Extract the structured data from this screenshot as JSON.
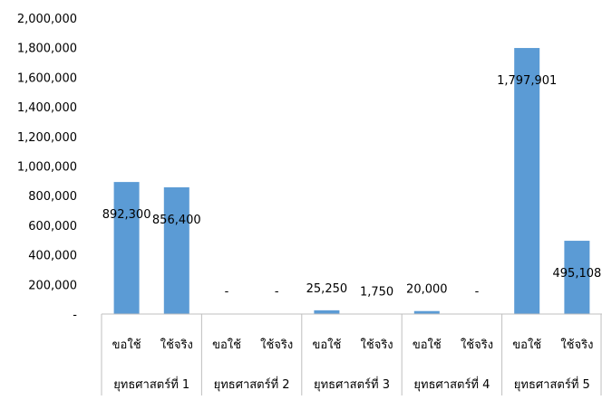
{
  "chart_data": {
    "type": "bar",
    "ylim": [
      0,
      2000000
    ],
    "y_ticks": [
      "-",
      "200,000",
      "400,000",
      "600,000",
      "800,000",
      "1,000,000",
      "1,200,000",
      "1,400,000",
      "1,600,000",
      "1,800,000",
      "2,000,000"
    ],
    "y_tick_values": [
      0,
      200000,
      400000,
      600000,
      800000,
      1000000,
      1200000,
      1400000,
      1600000,
      1800000,
      2000000
    ],
    "grid": false,
    "legend": "none",
    "bar_color": "#5B9BD5",
    "groups": [
      {
        "label": "ยุทธศาสตร์ที่ 1",
        "bars": [
          {
            "category": "ขอใช้",
            "value": 892300,
            "data_label": "892,300"
          },
          {
            "category": "ใช้จริง",
            "value": 856400,
            "data_label": "856,400"
          }
        ]
      },
      {
        "label": "ยุทธศาสตร์ที่ 2",
        "bars": [
          {
            "category": "ขอใช้",
            "value": 0,
            "data_label": "-"
          },
          {
            "category": "ใช้จริง",
            "value": 0,
            "data_label": "-"
          }
        ]
      },
      {
        "label": "ยุทธศาสตร์ที่ 3",
        "bars": [
          {
            "category": "ขอใช้",
            "value": 25250,
            "data_label": "25,250"
          },
          {
            "category": "ใช้จริง",
            "value": 1750,
            "data_label": "1,750"
          }
        ]
      },
      {
        "label": "ยุทธศาสตร์ที่ 4",
        "bars": [
          {
            "category": "ขอใช้",
            "value": 20000,
            "data_label": "20,000"
          },
          {
            "category": "ใช้จริง",
            "value": 0,
            "data_label": "-"
          }
        ]
      },
      {
        "label": "ยุทธศาสตร์ที่ 5",
        "bars": [
          {
            "category": "ขอใช้",
            "value": 1797901,
            "data_label": "1,797,901"
          },
          {
            "category": "ใช้จริง",
            "value": 495108,
            "data_label": "495,108"
          }
        ]
      }
    ]
  }
}
